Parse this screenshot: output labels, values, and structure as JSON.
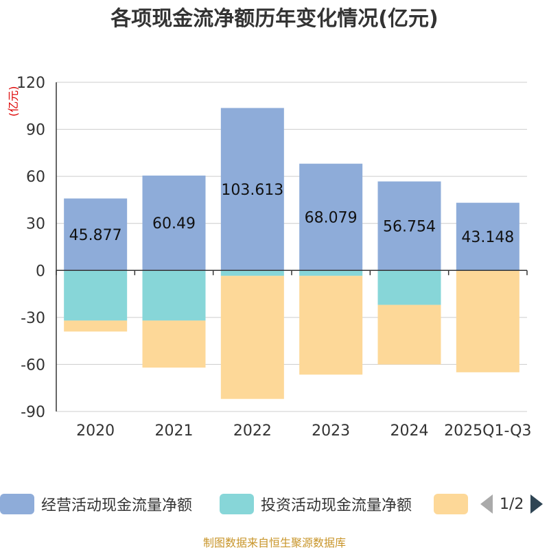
{
  "title": "各项现金流净额历年变化情况(亿元)",
  "unit_label": "(亿元)",
  "source": "制图数据来自恒生聚源数据库",
  "legend": {
    "page_label": "1/2",
    "items": [
      {
        "label": "经营活动现金流量净额",
        "color": "#8eacd9"
      },
      {
        "label": "投资活动现金流量净额",
        "color": "#87d6d8"
      },
      {
        "label": "",
        "color": "#fdd898"
      }
    ]
  },
  "chart_data": {
    "type": "bar",
    "stacked": true,
    "title": "各项现金流净额历年变化情况(亿元)",
    "ylabel": "(亿元)",
    "ylim": [
      -90,
      120
    ],
    "yticks": [
      120,
      90,
      60,
      30,
      0,
      -30,
      -60,
      -90
    ],
    "ytick_labels": [
      "120",
      "90",
      "60",
      "30",
      "0",
      "-30",
      "-60",
      "-90"
    ],
    "categories": [
      "2020",
      "2021",
      "2022",
      "2023",
      "2024",
      "2025Q1-Q3"
    ],
    "series": [
      {
        "name": "经营活动现金流量净额",
        "color": "#8eacd9",
        "values": [
          45.877,
          60.49,
          103.613,
          68.079,
          56.754,
          43.148
        ],
        "labels": [
          "45.877",
          "60.49",
          "103.613",
          "68.079",
          "56.754",
          "43.148"
        ]
      },
      {
        "name": "投资活动现金流量净额",
        "color": "#87d6d8",
        "values": [
          -32,
          -32,
          -3.5,
          -3.5,
          -22,
          0
        ]
      },
      {
        "name": "",
        "color": "#fdd898",
        "values": [
          -7,
          -30,
          -78.5,
          -63,
          -38,
          -65
        ]
      }
    ]
  }
}
